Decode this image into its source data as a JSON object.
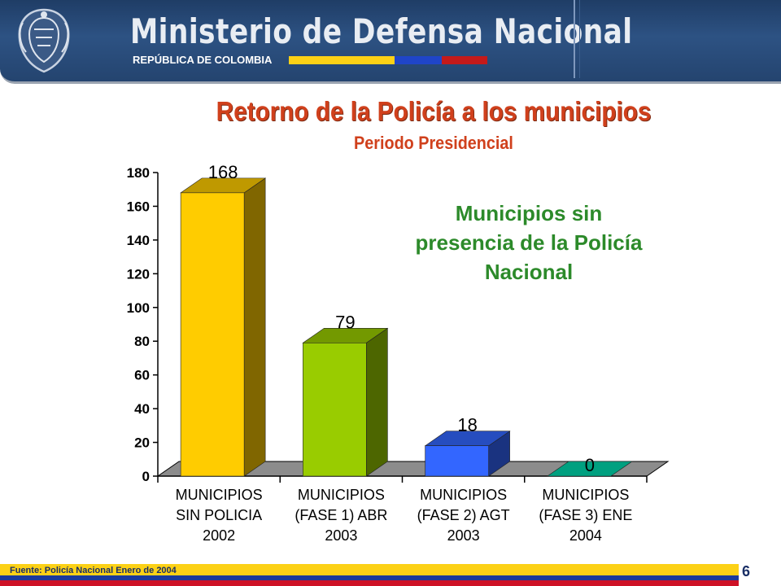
{
  "header": {
    "title": "Ministerio de Defensa Nacional",
    "subtitle": "REPÚBLICA DE COLOMBIA",
    "seal_icon": "coat-of-arms-icon"
  },
  "title": "Retorno de la Policía a los municipios",
  "subtitle": "Periodo Presidencial",
  "annotation": "Municipios sin presencia de la Policía Nacional",
  "footer": {
    "source": "Fuente: Policía Nacional Enero de 2004",
    "page_number": "6"
  },
  "colors": {
    "title": "#d0401c",
    "annotation": "#2c8a2a",
    "flag_yellow": "#fcd116",
    "flag_blue": "#003893",
    "flag_red": "#ce1126"
  },
  "chart_data": {
    "type": "bar",
    "categories": [
      [
        "MUNICIPIOS",
        "SIN POLICIA",
        "2002"
      ],
      [
        "MUNICIPIOS",
        "(FASE 1) ABR",
        "2003"
      ],
      [
        "MUNICIPIOS",
        "(FASE 2) AGT",
        "2003"
      ],
      [
        "MUNICIPIOS",
        "(FASE 3) ENE",
        "2004"
      ]
    ],
    "values": [
      168,
      79,
      18,
      0
    ],
    "data_labels": [
      "168",
      "79",
      "18",
      "0"
    ],
    "bar_colors": [
      "#ffcc00",
      "#99cc00",
      "#3366ff",
      "#00a080"
    ],
    "ylim": [
      0,
      180
    ],
    "yticks": [
      0,
      20,
      40,
      60,
      80,
      100,
      120,
      140,
      160,
      180
    ],
    "style": "3d",
    "grid": false,
    "legend": "none"
  }
}
